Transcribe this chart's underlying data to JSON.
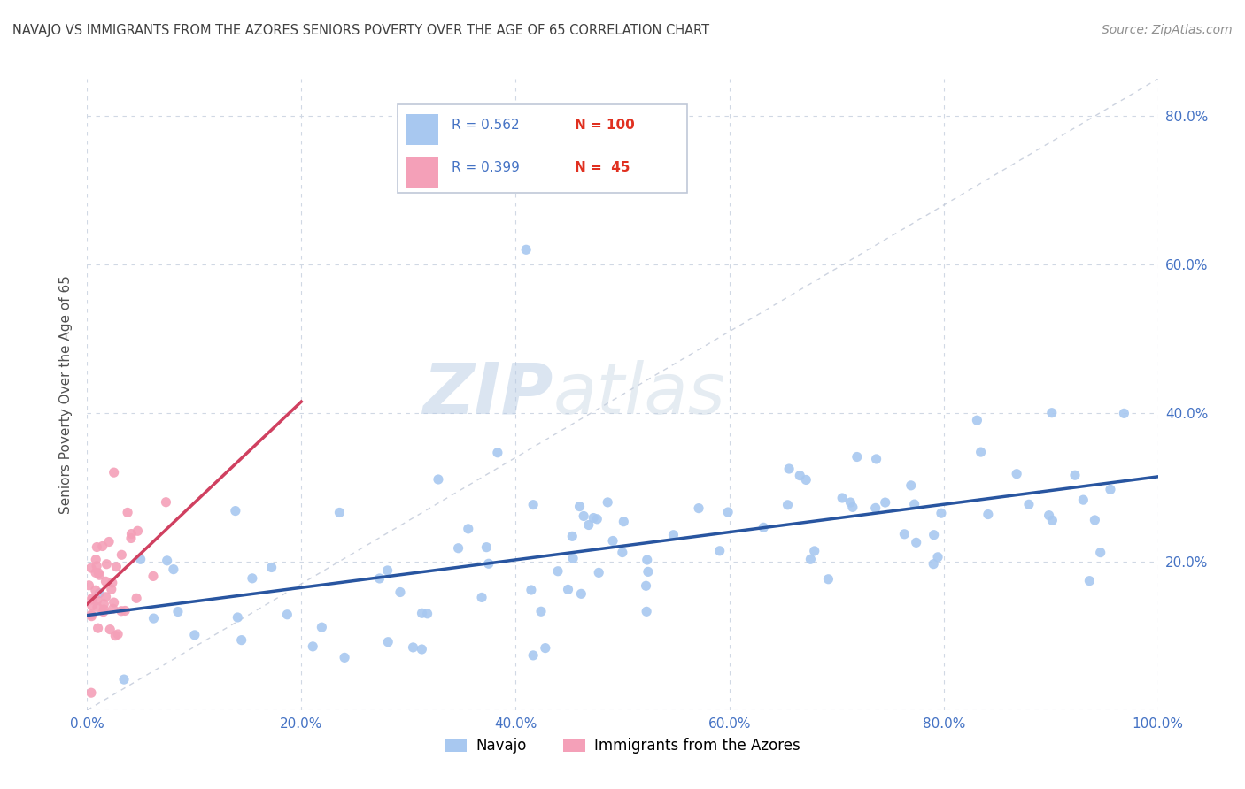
{
  "title": "NAVAJO VS IMMIGRANTS FROM THE AZORES SENIORS POVERTY OVER THE AGE OF 65 CORRELATION CHART",
  "source": "Source: ZipAtlas.com",
  "ylabel": "Seniors Poverty Over the Age of 65",
  "xlim": [
    0,
    1.0
  ],
  "ylim": [
    0,
    0.85
  ],
  "xticks": [
    0.0,
    0.2,
    0.4,
    0.6,
    0.8,
    1.0
  ],
  "yticks": [
    0.0,
    0.2,
    0.4,
    0.6,
    0.8
  ],
  "xticklabels": [
    "0.0%",
    "20.0%",
    "40.0%",
    "60.0%",
    "80.0%",
    "100.0%"
  ],
  "right_yticks": [
    0.0,
    0.2,
    0.4,
    0.6,
    0.8
  ],
  "right_yticklabels": [
    "",
    "20.0%",
    "40.0%",
    "60.0%",
    "80.0%"
  ],
  "navajo_color": "#a8c8f0",
  "azores_color": "#f4a0b8",
  "navajo_line_color": "#2855a0",
  "azores_line_color": "#d04060",
  "diag_line_color": "#c0c8d8",
  "legend_r1": "R = 0.562",
  "legend_n1": "N = 100",
  "legend_r2": "R = 0.399",
  "legend_n2": "N =  45",
  "legend_label1": "Navajo",
  "legend_label2": "Immigrants from the Azores",
  "navajo_R": 0.562,
  "navajo_N": 100,
  "azores_R": 0.399,
  "azores_N": 45,
  "watermark_zip": "ZIP",
  "watermark_atlas": "atlas",
  "background_color": "#ffffff",
  "grid_color": "#d0d8e4",
  "title_color": "#404040",
  "axis_tick_color": "#4472c4",
  "legend_text_color": "#4472c4",
  "legend_n_color": "#e03020"
}
